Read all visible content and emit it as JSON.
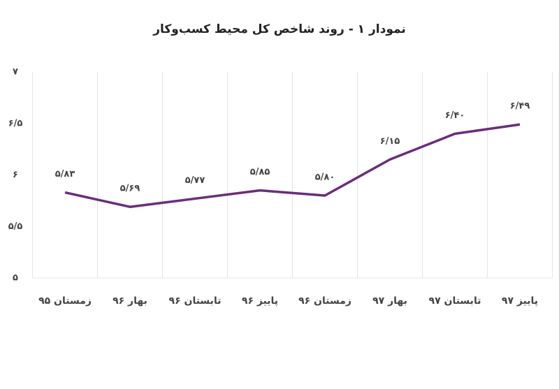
{
  "chart_data": {
    "type": "line",
    "title": "نمودار ۱ - روند شاخص کل محیط کسب‌وکار",
    "categories": [
      "زمستان ۹۵",
      "بهار ۹۶",
      "تابستان ۹۶",
      "پاییز ۹۶",
      "زمستان ۹۶",
      "بهار ۹۷",
      "تابستان ۹۷",
      "پاییز ۹۷"
    ],
    "series": [
      {
        "color": "#6b2c7d",
        "values": [
          5.83,
          5.69,
          5.77,
          5.85,
          5.8,
          6.15,
          6.4,
          6.49
        ],
        "value_labels": [
          "۵/۸۳",
          "۵/۶۹",
          "۵/۷۷",
          "۵/۸۵",
          "۵/۸۰",
          "۶/۱۵",
          "۶/۴۰",
          "۶/۴۹"
        ]
      }
    ],
    "ylim": [
      5,
      7
    ],
    "yticks": [
      {
        "value": 5,
        "label": "۵"
      },
      {
        "value": 5.5,
        "label": "۵/۵"
      },
      {
        "value": 6,
        "label": "۶"
      },
      {
        "value": 6.5,
        "label": "۶/۵"
      },
      {
        "value": 7,
        "label": "۷"
      }
    ]
  }
}
